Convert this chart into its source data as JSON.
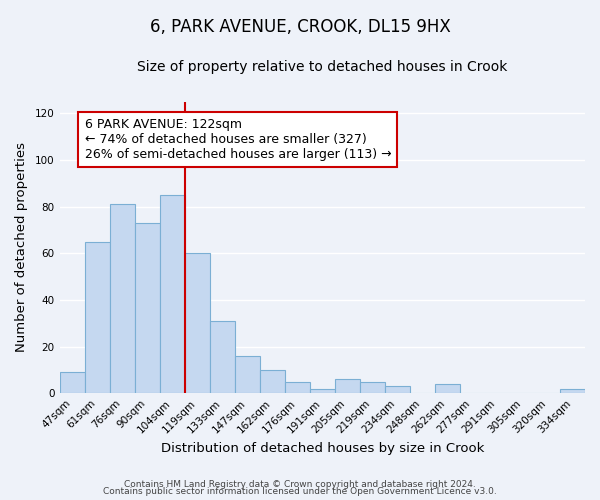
{
  "title": "6, PARK AVENUE, CROOK, DL15 9HX",
  "subtitle": "Size of property relative to detached houses in Crook",
  "xlabel": "Distribution of detached houses by size in Crook",
  "ylabel": "Number of detached properties",
  "categories": [
    "47sqm",
    "61sqm",
    "76sqm",
    "90sqm",
    "104sqm",
    "119sqm",
    "133sqm",
    "147sqm",
    "162sqm",
    "176sqm",
    "191sqm",
    "205sqm",
    "219sqm",
    "234sqm",
    "248sqm",
    "262sqm",
    "277sqm",
    "291sqm",
    "305sqm",
    "320sqm",
    "334sqm"
  ],
  "values": [
    9,
    65,
    81,
    73,
    85,
    60,
    31,
    16,
    10,
    5,
    2,
    6,
    5,
    3,
    0,
    4,
    0,
    0,
    0,
    0,
    2
  ],
  "bar_color": "#c5d8f0",
  "bar_edge_color": "#7bafd4",
  "vline_color": "#cc0000",
  "vline_x_index": 5,
  "annotation_text": "6 PARK AVENUE: 122sqm\n← 74% of detached houses are smaller (327)\n26% of semi-detached houses are larger (113) →",
  "annotation_box_color": "#ffffff",
  "annotation_box_edge_color": "#cc0000",
  "ylim": [
    0,
    125
  ],
  "yticks": [
    0,
    20,
    40,
    60,
    80,
    100,
    120
  ],
  "footer_line1": "Contains HM Land Registry data © Crown copyright and database right 2024.",
  "footer_line2": "Contains public sector information licensed under the Open Government Licence v3.0.",
  "background_color": "#eef2f9",
  "grid_color": "#ffffff",
  "title_fontsize": 12,
  "subtitle_fontsize": 10,
  "axis_label_fontsize": 9.5,
  "tick_fontsize": 7.5,
  "annotation_fontsize": 9,
  "footer_fontsize": 6.5
}
